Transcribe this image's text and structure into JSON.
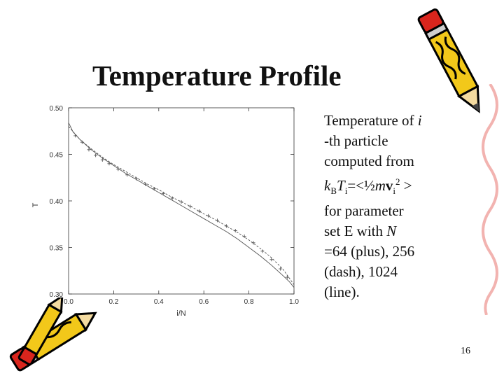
{
  "title": "Temperature Profile",
  "description": {
    "l1a": "Temperature of ",
    "l1b": "i",
    "l2": "-th particle",
    "l3": "computed from",
    "l4_k": "k",
    "l4_B": "B",
    "l4_T": "T",
    "l4_i": "i",
    "l4_mid": "=<½",
    "l4_m": "m",
    "l4_v": "v",
    "l4_i2": "i",
    "l4_sq": "2",
    "l4_end": " >",
    "l5": "for parameter",
    "l6a": "set E with ",
    "l6b": "N",
    "l7": "=64 (plus), 256",
    "l8": "(dash), 1024",
    "l9": "(line)."
  },
  "page_number": "16",
  "colors": {
    "line": "#555555",
    "axis": "#333333",
    "pencil_yellow": "#f2c81a",
    "pencil_red": "#d9251d"
  },
  "chart_data": {
    "type": "line",
    "xlabel": "i/N",
    "ylabel": "T",
    "xlim": [
      0.0,
      1.0
    ],
    "ylim": [
      0.3,
      0.5
    ],
    "xticks": [
      "0.0",
      "0.2",
      "0.4",
      "0.6",
      "0.8",
      "1.0"
    ],
    "yticks": [
      "0.30",
      "0.35",
      "0.40",
      "0.45",
      "0.50"
    ],
    "grid": false,
    "series": [
      {
        "name": "N=1024",
        "style": "line",
        "x": [
          0.0,
          0.02,
          0.05,
          0.1,
          0.15,
          0.2,
          0.25,
          0.3,
          0.35,
          0.4,
          0.45,
          0.5,
          0.55,
          0.6,
          0.65,
          0.7,
          0.75,
          0.8,
          0.85,
          0.9,
          0.95,
          0.98,
          1.0
        ],
        "y": [
          0.484,
          0.474,
          0.466,
          0.455,
          0.446,
          0.438,
          0.43,
          0.423,
          0.416,
          0.409,
          0.402,
          0.395,
          0.388,
          0.381,
          0.374,
          0.367,
          0.359,
          0.35,
          0.341,
          0.331,
          0.32,
          0.313,
          0.307
        ]
      },
      {
        "name": "N=256",
        "style": "dash",
        "x": [
          0.0,
          0.05,
          0.1,
          0.15,
          0.2,
          0.25,
          0.3,
          0.35,
          0.4,
          0.45,
          0.5,
          0.55,
          0.6,
          0.65,
          0.7,
          0.75,
          0.8,
          0.85,
          0.9,
          0.95,
          1.0
        ],
        "y": [
          0.48,
          0.466,
          0.456,
          0.447,
          0.439,
          0.432,
          0.425,
          0.418,
          0.412,
          0.405,
          0.399,
          0.393,
          0.386,
          0.38,
          0.373,
          0.366,
          0.358,
          0.349,
          0.339,
          0.327,
          0.31
        ]
      },
      {
        "name": "N=64",
        "style": "plus",
        "x": [
          0.03,
          0.06,
          0.09,
          0.12,
          0.15,
          0.18,
          0.22,
          0.26,
          0.3,
          0.34,
          0.38,
          0.42,
          0.46,
          0.5,
          0.54,
          0.58,
          0.62,
          0.66,
          0.7,
          0.74,
          0.78,
          0.82,
          0.86,
          0.9,
          0.94,
          0.97
        ],
        "y": [
          0.47,
          0.463,
          0.455,
          0.449,
          0.444,
          0.44,
          0.434,
          0.428,
          0.424,
          0.418,
          0.413,
          0.408,
          0.403,
          0.399,
          0.394,
          0.389,
          0.384,
          0.379,
          0.373,
          0.368,
          0.362,
          0.355,
          0.346,
          0.337,
          0.327,
          0.318
        ]
      }
    ]
  }
}
